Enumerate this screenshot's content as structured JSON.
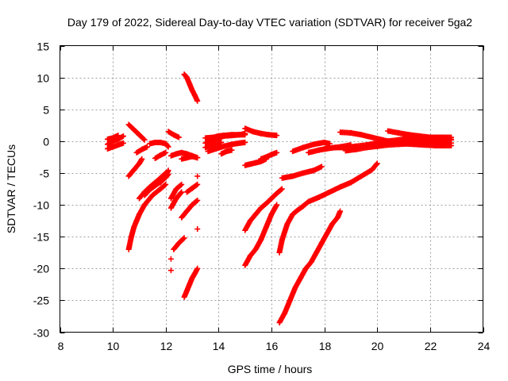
{
  "chart_data": {
    "type": "scatter",
    "title": "Day 179 of 2022, Sidereal Day-to-day VTEC variation (SDTVAR) for receiver 5ga2",
    "xlabel": "GPS time / hours",
    "ylabel": "SDTVAR / TECUs",
    "xlim": [
      8,
      24
    ],
    "ylim": [
      -30,
      15
    ],
    "xticks": [
      "8",
      "10",
      "12",
      "14",
      "16",
      "18",
      "20",
      "22",
      "24"
    ],
    "yticks": [
      "15",
      "10",
      "5",
      "0",
      "-5",
      "-10",
      "-15",
      "-20",
      "-25",
      "-30"
    ],
    "grid": true,
    "marker": "+",
    "color": "#ff0000",
    "segments": [
      {
        "x": [
          9.8,
          10.0,
          10.2,
          10.4
        ],
        "y": [
          -0.5,
          0.0,
          0.3,
          0.8
        ]
      },
      {
        "x": [
          9.8,
          10.0,
          10.2,
          10.4
        ],
        "y": [
          -1.2,
          -0.9,
          -0.6,
          -0.3
        ]
      },
      {
        "x": [
          9.8,
          10.0,
          10.2
        ],
        "y": [
          0.3,
          0.5,
          0.9
        ]
      },
      {
        "x": [
          10.6,
          10.8,
          11.0,
          11.2
        ],
        "y": [
          2.6,
          1.8,
          1.0,
          0.2
        ]
      },
      {
        "x": [
          10.6,
          10.8,
          11.0,
          11.1
        ],
        "y": [
          -5.5,
          -4.5,
          -3.5,
          -2.8
        ]
      },
      {
        "x": [
          10.9,
          11.1,
          11.3
        ],
        "y": [
          -1.8,
          -1.3,
          -0.9
        ]
      },
      {
        "x": [
          11.4,
          11.6,
          11.8,
          12.0,
          12.1
        ],
        "y": [
          -0.4,
          -0.2,
          -0.2,
          -0.4,
          -0.9
        ]
      },
      {
        "x": [
          10.6,
          10.7,
          10.8,
          10.9,
          11.0,
          11.2,
          11.5,
          11.8,
          12.0
        ],
        "y": [
          -17.0,
          -15.0,
          -13.5,
          -12.5,
          -11.5,
          -10.0,
          -8.5,
          -7.5,
          -6.8
        ]
      },
      {
        "x": [
          11.0,
          11.2,
          11.4,
          11.6,
          11.8,
          12.0
        ],
        "y": [
          -9.0,
          -8.0,
          -7.2,
          -6.5,
          -5.8,
          -5.0
        ]
      },
      {
        "x": [
          11.2,
          11.4,
          11.6,
          11.8,
          12.0,
          12.1
        ],
        "y": [
          -8.5,
          -7.6,
          -7.0,
          -6.4,
          -5.7,
          -5.2
        ]
      },
      {
        "x": [
          11.8,
          11.9,
          12.0,
          12.1
        ],
        "y": [
          -6.5,
          -6.0,
          -5.5,
          -4.6
        ]
      },
      {
        "x": [
          11.6,
          11.8,
          12.0
        ],
        "y": [
          -2.7,
          -2.2,
          -1.8
        ]
      },
      {
        "x": [
          12.1,
          12.3,
          12.5
        ],
        "y": [
          1.5,
          1.0,
          0.6
        ]
      },
      {
        "x": [
          12.2,
          12.4,
          12.6,
          12.8,
          13.0,
          13.2
        ],
        "y": [
          -2.3,
          -2.0,
          -1.8,
          -2.0,
          -2.3,
          -2.6
        ]
      },
      {
        "x": [
          12.6,
          12.8,
          13.0,
          13.2
        ],
        "y": [
          -2.8,
          -2.6,
          -2.4,
          -2.6
        ]
      },
      {
        "x": [
          12.2,
          12.4,
          12.6
        ],
        "y": [
          -9.0,
          -7.5,
          -6.8
        ]
      },
      {
        "x": [
          12.2,
          12.4,
          12.6
        ],
        "y": [
          -10.5,
          -9.0,
          -8.0
        ]
      },
      {
        "x": [
          12.6,
          12.8,
          13.0,
          13.2
        ],
        "y": [
          -12.0,
          -11.0,
          -10.0,
          -9.3
        ]
      },
      {
        "x": [
          12.8,
          13.0,
          13.2
        ],
        "y": [
          -8.0,
          -7.4,
          -6.8
        ]
      },
      {
        "x": [
          12.3,
          12.5,
          12.7
        ],
        "y": [
          -17.0,
          -16.0,
          -15.2
        ]
      },
      {
        "x": [
          12.2
        ],
        "y": [
          -18.5
        ]
      },
      {
        "x": [
          12.2
        ],
        "y": [
          -20.3
        ]
      },
      {
        "x": [
          12.7,
          12.8,
          12.9,
          13.0,
          13.1,
          13.2
        ],
        "y": [
          -24.5,
          -23.5,
          -22.5,
          -21.5,
          -20.8,
          -20.0
        ]
      },
      {
        "x": [
          12.7,
          12.8,
          12.9,
          13.0,
          13.1,
          13.2
        ],
        "y": [
          10.5,
          10.0,
          9.0,
          8.0,
          7.2,
          6.3
        ]
      },
      {
        "x": [
          13.2
        ],
        "y": [
          -5.5
        ]
      },
      {
        "x": [
          13.2
        ],
        "y": [
          -13.8
        ]
      },
      {
        "x": [
          13.5,
          13.8,
          14.0,
          14.2,
          14.5,
          14.8,
          15.0
        ],
        "y": [
          -0.3,
          0.2,
          0.5,
          0.8,
          0.9,
          1.0,
          1.0
        ]
      },
      {
        "x": [
          13.5,
          13.8,
          14.0,
          14.2,
          14.5,
          14.8,
          15.0
        ],
        "y": [
          0.5,
          0.6,
          0.8,
          0.9,
          1.0,
          1.0,
          1.2
        ]
      },
      {
        "x": [
          13.5,
          13.8,
          14.1
        ],
        "y": [
          -1.0,
          -0.6,
          -0.2
        ]
      },
      {
        "x": [
          13.6,
          13.9,
          14.2,
          14.5,
          14.8,
          15.0
        ],
        "y": [
          -1.6,
          -1.2,
          -0.8,
          -0.5,
          -0.3,
          -0.2
        ]
      },
      {
        "x": [
          14.1,
          14.3,
          14.5
        ],
        "y": [
          -2.0,
          -1.6,
          -1.4
        ]
      },
      {
        "x": [
          15.0,
          15.3,
          15.6,
          15.9,
          16.2
        ],
        "y": [
          2.0,
          1.5,
          1.2,
          1.0,
          0.9
        ]
      },
      {
        "x": [
          15.0,
          15.2,
          15.4,
          15.6,
          15.8
        ],
        "y": [
          -3.8,
          -3.6,
          -3.4,
          -3.2,
          -2.8
        ]
      },
      {
        "x": [
          15.6,
          15.8,
          16.0,
          16.2
        ],
        "y": [
          -2.8,
          -2.5,
          -2.1,
          -1.8
        ]
      },
      {
        "x": [
          15.0,
          15.2,
          15.4,
          15.6,
          15.8,
          16.0,
          16.2,
          16.4
        ],
        "y": [
          -14.0,
          -12.5,
          -11.5,
          -10.5,
          -9.8,
          -9.0,
          -8.2,
          -7.5
        ]
      },
      {
        "x": [
          15.0,
          15.2,
          15.4,
          15.6,
          15.8,
          16.0,
          16.2
        ],
        "y": [
          -19.5,
          -18.0,
          -17.0,
          -15.5,
          -13.5,
          -11.5,
          -10.0
        ]
      },
      {
        "x": [
          16.3,
          16.4,
          16.6,
          16.8,
          17.0,
          17.2,
          17.4,
          17.8
        ],
        "y": [
          -17.5,
          -15.5,
          -13.0,
          -11.5,
          -10.8,
          -10.2,
          -9.5,
          -8.8
        ]
      },
      {
        "x": [
          17.8,
          18.2,
          18.6,
          19.0,
          19.4,
          19.8,
          20.0
        ],
        "y": [
          -8.8,
          -8.0,
          -7.2,
          -6.5,
          -5.5,
          -4.5,
          -3.5
        ]
      },
      {
        "x": [
          16.3,
          16.5,
          16.7,
          16.9,
          17.1,
          17.3,
          17.5,
          17.7,
          17.9,
          18.1,
          18.3,
          18.5,
          18.6
        ],
        "y": [
          -28.5,
          -27.0,
          -25.0,
          -23.0,
          -21.5,
          -20.0,
          -19.0,
          -17.5,
          -16.0,
          -14.5,
          -13.0,
          -12.0,
          -11.0
        ]
      },
      {
        "x": [
          16.4,
          16.8,
          17.2,
          17.6,
          17.9
        ],
        "y": [
          -5.8,
          -5.5,
          -5.0,
          -4.6,
          -4.0
        ]
      },
      {
        "x": [
          16.8,
          17.2,
          17.6,
          18.0,
          18.2
        ],
        "y": [
          -1.6,
          -1.0,
          -0.5,
          -0.2,
          -0.4
        ]
      },
      {
        "x": [
          17.4,
          17.8,
          18.2,
          18.6,
          19.0
        ],
        "y": [
          -1.8,
          -1.4,
          -1.1,
          -0.9,
          -0.6
        ]
      },
      {
        "x": [
          18.0,
          18.4,
          18.8,
          19.2,
          19.6,
          20.0,
          20.4,
          20.8,
          21.2,
          21.6,
          22.0,
          22.4,
          22.8
        ],
        "y": [
          -1.2,
          -1.0,
          -1.0,
          -0.8,
          -0.6,
          -0.5,
          -0.3,
          -0.2,
          -0.1,
          0.0,
          0.0,
          0.1,
          0.2
        ]
      },
      {
        "x": [
          18.6,
          19.0,
          19.4,
          19.8,
          20.2,
          20.6,
          21.0,
          21.4,
          21.8,
          22.2,
          22.8
        ],
        "y": [
          1.4,
          1.3,
          1.0,
          0.6,
          0.2,
          -0.2,
          -0.4,
          -0.5,
          -0.6,
          -0.7,
          -0.7
        ]
      },
      {
        "x": [
          19.6,
          20.0,
          20.4,
          20.8,
          21.2,
          21.6,
          22.0,
          22.4,
          22.8
        ],
        "y": [
          -0.6,
          -0.3,
          0.0,
          0.2,
          0.4,
          0.5,
          0.6,
          0.6,
          0.6
        ]
      },
      {
        "x": [
          20.4,
          20.8,
          21.2,
          21.6,
          22.0,
          22.4,
          22.8
        ],
        "y": [
          1.6,
          1.3,
          1.0,
          0.8,
          0.6,
          0.5,
          0.3
        ]
      },
      {
        "x": [
          18.8,
          19.2,
          19.6,
          20.0,
          20.4,
          20.8,
          21.2,
          21.6,
          22.0,
          22.4,
          22.8
        ],
        "y": [
          -1.5,
          -1.3,
          -1.0,
          -0.8,
          -0.6,
          -0.5,
          -0.4,
          -0.4,
          -0.3,
          -0.3,
          -0.3
        ]
      }
    ]
  }
}
